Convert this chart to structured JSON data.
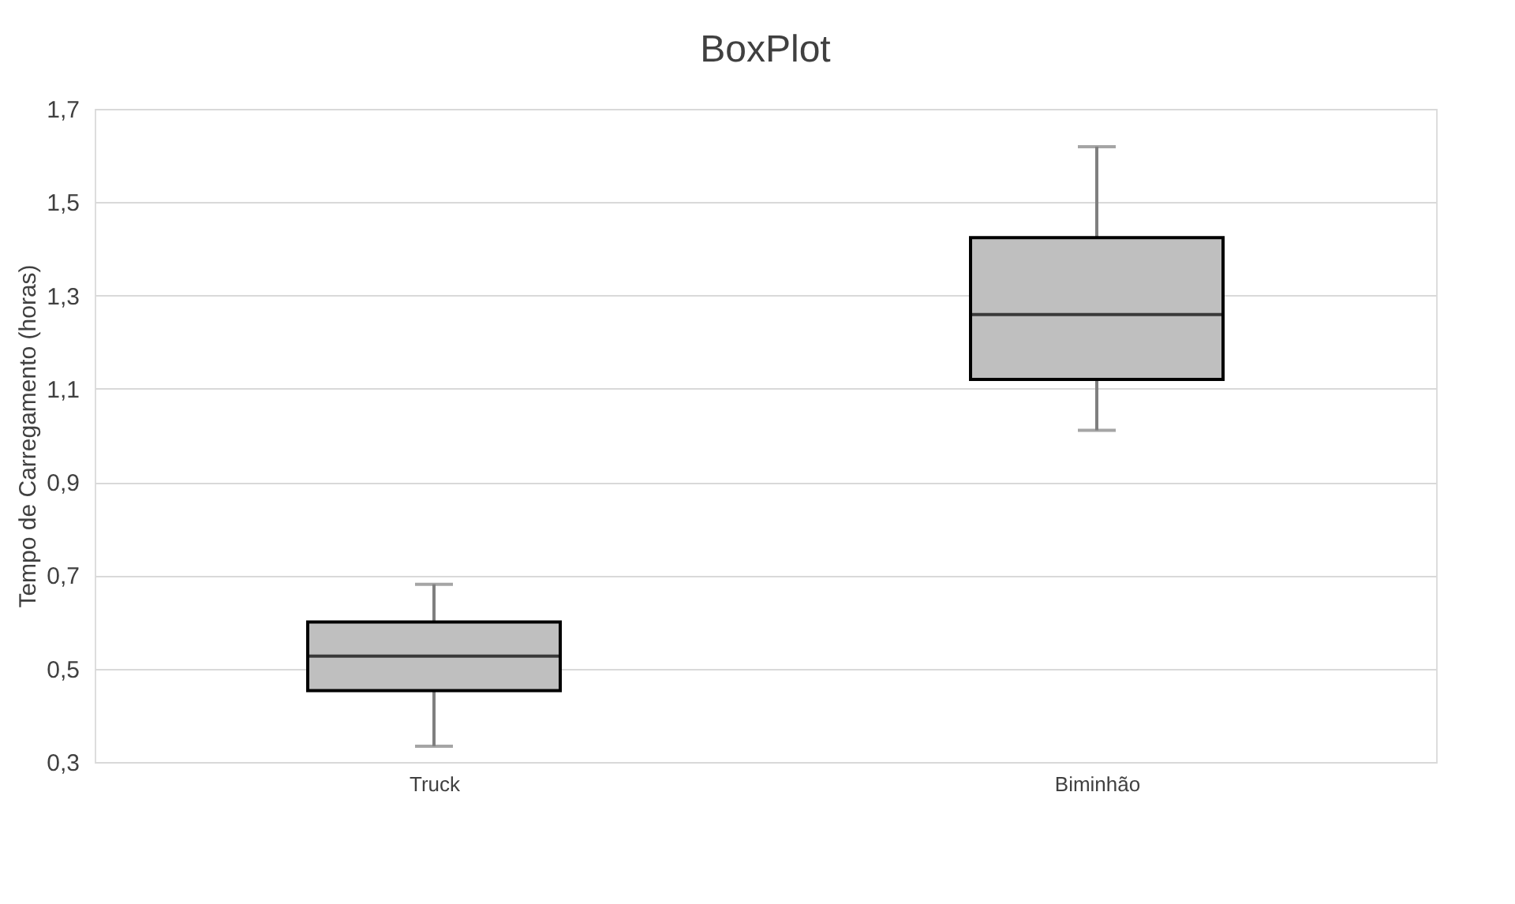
{
  "chart_data": {
    "type": "box",
    "title": "BoxPlot",
    "ylabel": "Tempo de Carregamento (horas)",
    "categories": [
      "Truck",
      "Biminhão"
    ],
    "boxes": [
      {
        "low": 0.334,
        "q1": 0.453,
        "median": 0.527,
        "q3": 0.6,
        "high": 0.681
      },
      {
        "low": 1.011,
        "q1": 1.12,
        "median": 1.259,
        "q3": 1.424,
        "high": 1.619
      }
    ],
    "color": "#bfbfbf",
    "ylim": [
      0.3,
      1.7
    ],
    "yticks": [
      {
        "value": 0.3,
        "label": "0,3"
      },
      {
        "value": 0.5,
        "label": "0,5"
      },
      {
        "value": 0.7,
        "label": "0,7"
      },
      {
        "value": 0.9,
        "label": "0,9"
      },
      {
        "value": 1.1,
        "label": "1,1"
      },
      {
        "value": 1.3,
        "label": "1,3"
      },
      {
        "value": 1.5,
        "label": "1,5"
      },
      {
        "value": 1.7,
        "label": "1,7"
      }
    ],
    "grid": "y"
  }
}
